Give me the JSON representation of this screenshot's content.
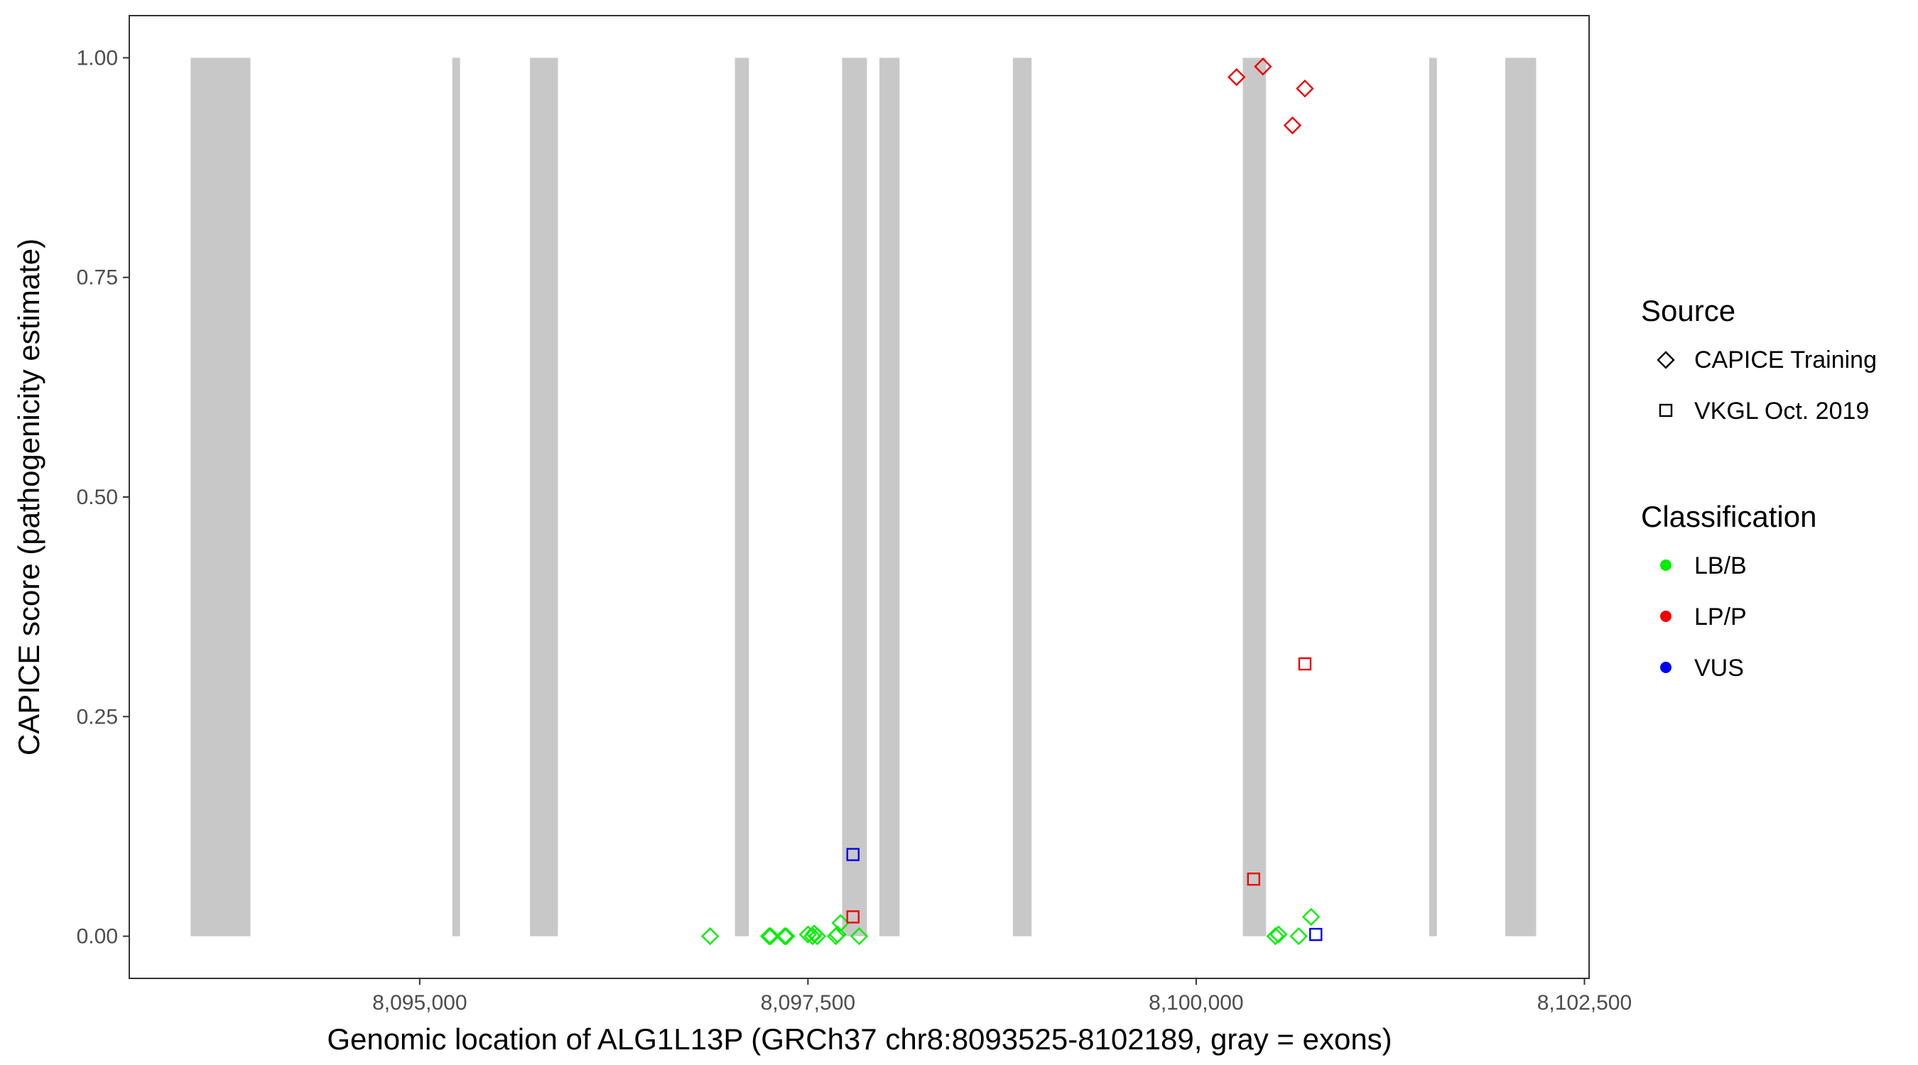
{
  "chart_data": {
    "type": "scatter",
    "title": "",
    "xlabel": "Genomic location of ALG1L13P (GRCh37 chr8:8093525-8102189, gray = exons)",
    "ylabel": "CAPICE score (pathogenicity estimate)",
    "xlim": [
      8093130,
      8102530
    ],
    "ylim": [
      -0.048,
      1.048
    ],
    "x_ticks": [
      8095000,
      8097500,
      8100000,
      8102500
    ],
    "x_tick_labels": [
      "8,095,000",
      "8,097,500",
      "8,100,000",
      "8,102,500"
    ],
    "y_ticks": [
      0,
      0.25,
      0.5,
      0.75,
      1.0
    ],
    "y_tick_labels": [
      "0.00",
      "0.25",
      "0.50",
      "0.75",
      "1.00"
    ],
    "grid": false,
    "legend_position": "right",
    "exon_color": "#c8c8c8",
    "exons": [
      [
        8093525,
        8093910
      ],
      [
        8095210,
        8095260
      ],
      [
        8095710,
        8095890
      ],
      [
        8097030,
        8097120
      ],
      [
        8097720,
        8097880
      ],
      [
        8097960,
        8098090
      ],
      [
        8098820,
        8098940
      ],
      [
        8100300,
        8100450
      ],
      [
        8101500,
        8101550
      ],
      [
        8101990,
        8102189
      ]
    ],
    "legend": {
      "source_title": "Source",
      "source_items": [
        {
          "label": "CAPICE Training",
          "shape": "diamond"
        },
        {
          "label": "VKGL Oct. 2019",
          "shape": "square"
        }
      ],
      "class_title": "Classification",
      "class_items": [
        {
          "label": "LB/B",
          "color": "#00ee00"
        },
        {
          "label": "LP/P",
          "color": "#ee0000"
        },
        {
          "label": "VUS",
          "color": "#0000ee"
        }
      ]
    },
    "series": [
      {
        "shape": "diamond",
        "classification": "LB/B",
        "points": [
          [
            8096870,
            0.0
          ],
          [
            8097250,
            0.0
          ],
          [
            8097260,
            0.0
          ],
          [
            8097350,
            0.0
          ],
          [
            8097360,
            0.0
          ],
          [
            8097500,
            0.002
          ],
          [
            8097530,
            0.0
          ],
          [
            8097540,
            0.003
          ],
          [
            8097560,
            0.0
          ],
          [
            8097680,
            0.0
          ],
          [
            8097690,
            0.002
          ],
          [
            8097710,
            0.015
          ],
          [
            8097830,
            0.0
          ],
          [
            8100510,
            0.0
          ],
          [
            8100530,
            0.002
          ],
          [
            8100660,
            0.0
          ],
          [
            8100740,
            0.022
          ]
        ]
      },
      {
        "shape": "diamond",
        "classification": "LP/P",
        "points": [
          [
            8100260,
            0.978
          ],
          [
            8100430,
            0.99
          ],
          [
            8100620,
            0.923
          ],
          [
            8100700,
            0.965
          ]
        ]
      },
      {
        "shape": "square",
        "classification": "LP/P",
        "points": [
          [
            8097790,
            0.022
          ],
          [
            8100370,
            0.065
          ],
          [
            8100700,
            0.31
          ]
        ]
      },
      {
        "shape": "square",
        "classification": "VUS",
        "points": [
          [
            8097790,
            0.093
          ],
          [
            8100770,
            0.002
          ]
        ]
      }
    ]
  }
}
